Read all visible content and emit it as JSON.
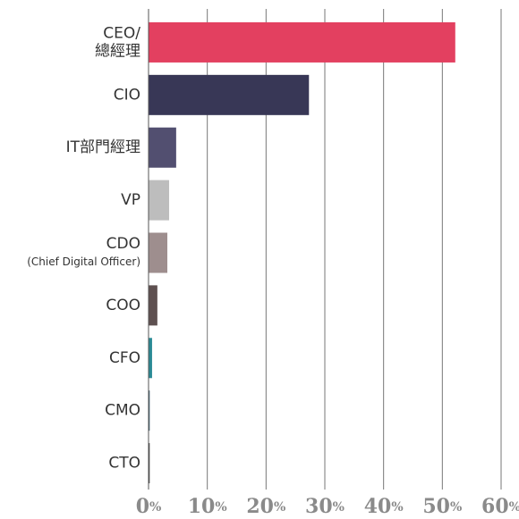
{
  "chart_data": {
    "type": "barh",
    "categories": [
      "CEO/\n總經理",
      "CIO",
      "IT部門經理",
      "VP",
      "CDO\n(Chief Digital Officer)",
      "COO",
      "CFO",
      "CMO",
      "CTO"
    ],
    "values": [
      52.2,
      27.3,
      4.7,
      3.5,
      3.2,
      1.5,
      0.6,
      0.2,
      0.2
    ],
    "colors": [
      "#e34060",
      "#383756",
      "#524f70",
      "#bdbdbd",
      "#9e8e8e",
      "#5e5050",
      "#2a8a95",
      "#3a5a6a",
      "#444444"
    ],
    "xlim": [
      0,
      60
    ],
    "xticks": [
      {
        "value": 0,
        "label": "0%"
      },
      {
        "value": 10,
        "label": "10%"
      },
      {
        "value": 20,
        "label": "20%"
      },
      {
        "value": 30,
        "label": "30%"
      },
      {
        "value": 40,
        "label": "40%"
      },
      {
        "value": 50,
        "label": "50%"
      },
      {
        "value": 60,
        "label": "60%"
      }
    ],
    "grid": true
  }
}
